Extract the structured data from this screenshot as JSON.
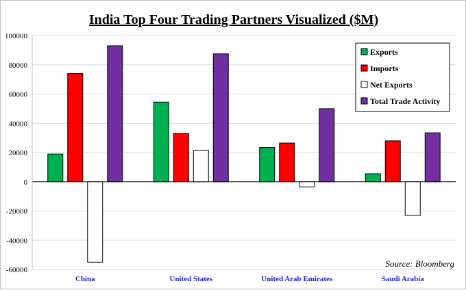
{
  "chart_data": {
    "type": "bar",
    "title": "India Top Four Trading Partners Visualized ($M)",
    "source": "Source: Bloomberg",
    "categories": [
      "China",
      "United States",
      "United Arab Emirates",
      "Saudi Arabia"
    ],
    "series": [
      {
        "name": "Exports",
        "color": "#00b050",
        "values": [
          19000,
          54500,
          23500,
          5500
        ]
      },
      {
        "name": "Imports",
        "color": "#ff0000",
        "values": [
          74000,
          33000,
          26500,
          28000
        ]
      },
      {
        "name": "Net Exports",
        "color": "#ffffff",
        "values": [
          -55000,
          21500,
          -3500,
          -23000
        ]
      },
      {
        "name": "Total Trade Activity",
        "color": "#7030a0",
        "values": [
          93000,
          87500,
          50000,
          33500
        ]
      }
    ],
    "ylim": [
      -60000,
      100000
    ],
    "yticks": [
      100000,
      80000,
      60000,
      40000,
      20000,
      0,
      -20000,
      -40000,
      -60000
    ],
    "grid": true,
    "legend_position": "top-right"
  }
}
